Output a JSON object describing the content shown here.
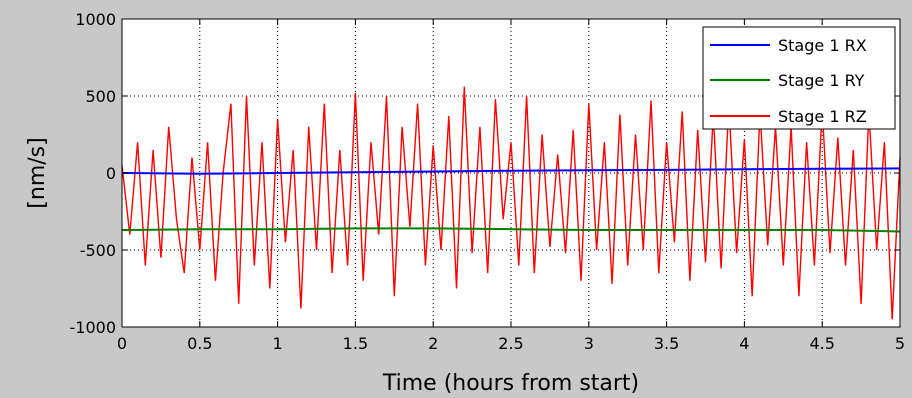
{
  "chart_data": {
    "type": "line",
    "title": "",
    "xlabel": "Time (hours from start)",
    "ylabel": "[nm/s]",
    "xlim": [
      0,
      5
    ],
    "ylim": [
      -1000,
      1000
    ],
    "xticks": [
      0,
      0.5,
      1,
      1.5,
      2,
      2.5,
      3,
      3.5,
      4,
      4.5,
      5
    ],
    "xtick_labels": [
      "0",
      "0.5",
      "1",
      "1.5",
      "2",
      "2.5",
      "3",
      "3.5",
      "4",
      "4.5",
      "5"
    ],
    "yticks": [
      -1000,
      -500,
      0,
      500,
      1000
    ],
    "ytick_labels": [
      "-1000",
      "-500",
      "0",
      "500",
      "1000"
    ],
    "grid": true,
    "legend_position": "top-right",
    "series": [
      {
        "name": "Stage 1 RX",
        "color": "#0000ff",
        "x": [
          0,
          0.5,
          1,
          1.5,
          2,
          2.5,
          3,
          3.5,
          4,
          4.5,
          5
        ],
        "y": [
          0,
          -5,
          0,
          5,
          10,
          15,
          18,
          20,
          25,
          28,
          30
        ]
      },
      {
        "name": "Stage 1 RY",
        "color": "#008000",
        "x": [
          0,
          0.5,
          1,
          1.5,
          2,
          2.5,
          3,
          3.5,
          4,
          4.5,
          5
        ],
        "y": [
          -370,
          -365,
          -365,
          -360,
          -360,
          -365,
          -370,
          -370,
          -370,
          -370,
          -380
        ]
      },
      {
        "name": "Stage 1 RZ",
        "color": "#ff0000",
        "x": [
          0,
          0.05,
          0.1,
          0.15,
          0.2,
          0.25,
          0.3,
          0.35,
          0.4,
          0.45,
          0.5,
          0.55,
          0.6,
          0.65,
          0.7,
          0.75,
          0.8,
          0.85,
          0.9,
          0.95,
          1,
          1.05,
          1.1,
          1.15,
          1.2,
          1.25,
          1.3,
          1.35,
          1.4,
          1.45,
          1.5,
          1.55,
          1.6,
          1.65,
          1.7,
          1.75,
          1.8,
          1.85,
          1.9,
          1.95,
          2,
          2.05,
          2.1,
          2.15,
          2.2,
          2.25,
          2.3,
          2.35,
          2.4,
          2.45,
          2.5,
          2.55,
          2.6,
          2.65,
          2.7,
          2.75,
          2.8,
          2.85,
          2.9,
          2.95,
          3,
          3.05,
          3.1,
          3.15,
          3.2,
          3.25,
          3.3,
          3.35,
          3.4,
          3.45,
          3.5,
          3.55,
          3.6,
          3.65,
          3.7,
          3.75,
          3.8,
          3.85,
          3.9,
          3.95,
          4,
          4.05,
          4.1,
          4.15,
          4.2,
          4.25,
          4.3,
          4.35,
          4.4,
          4.45,
          4.5,
          4.55,
          4.6,
          4.65,
          4.7,
          4.75,
          4.8,
          4.85,
          4.9,
          4.95,
          5
        ],
        "y": [
          50,
          -400,
          200,
          -600,
          150,
          -550,
          300,
          -300,
          -650,
          100,
          -500,
          200,
          -700,
          0,
          450,
          -850,
          500,
          -600,
          200,
          -750,
          350,
          -450,
          150,
          -880,
          300,
          -500,
          450,
          -650,
          150,
          -600,
          520,
          -700,
          200,
          -400,
          500,
          -800,
          300,
          -350,
          450,
          -600,
          180,
          -500,
          370,
          -750,
          560,
          -520,
          300,
          -650,
          480,
          -300,
          200,
          -600,
          500,
          -650,
          250,
          -480,
          120,
          -520,
          280,
          -700,
          450,
          -500,
          200,
          -720,
          380,
          -600,
          250,
          -500,
          470,
          -650,
          200,
          -450,
          400,
          -700,
          280,
          -580,
          380,
          -620,
          450,
          -520,
          220,
          -800,
          400,
          -470,
          300,
          -600,
          300,
          -800,
          200,
          -600,
          420,
          -520,
          230,
          -600,
          150,
          -850,
          400,
          -500,
          200,
          -950,
          100
        ]
      }
    ]
  }
}
